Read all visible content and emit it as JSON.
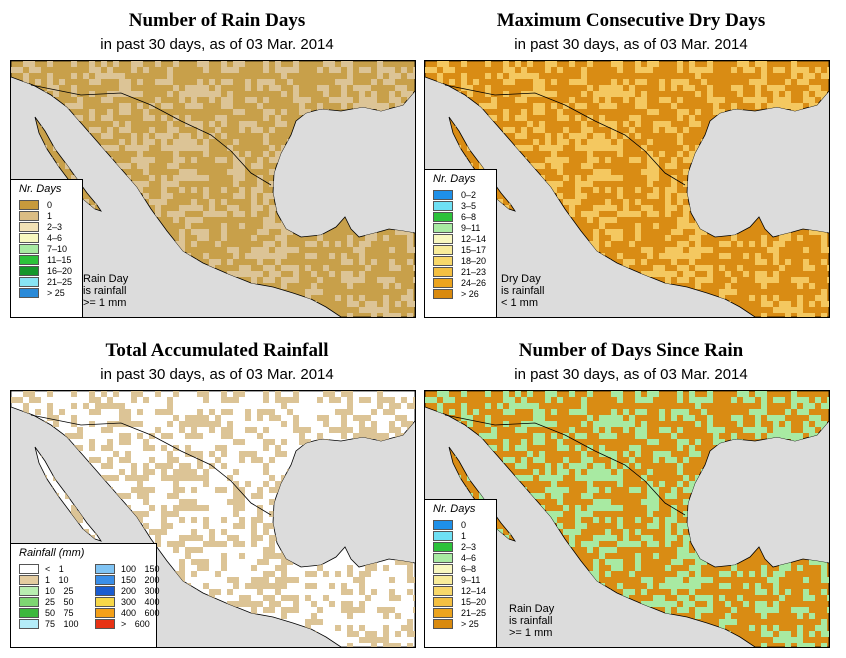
{
  "colors": {
    "ocean": "#dcdcdc",
    "brown": "#c8a04a",
    "tan": "#dcc496",
    "orange": "#d98c14",
    "green": "#33b84c",
    "lightgreen": "#9fe28f",
    "blue": "#39a3e6",
    "white": "#ffffff"
  },
  "panels": {
    "rain_days": {
      "title": "Number of Rain Days",
      "subtitle": "in past 30 days, as of  03 Mar. 2014",
      "legend_title": "Nr. Days",
      "legend": [
        {
          "label": "0",
          "color": "#c79a3c"
        },
        {
          "label": "1",
          "color": "#dbbd84"
        },
        {
          "label": "2–3",
          "color": "#f2e2b6"
        },
        {
          "label": "4–6",
          "color": "#f8f8c0"
        },
        {
          "label": "7–10",
          "color": "#a8eaa2"
        },
        {
          "label": "11–15",
          "color": "#2cc23a"
        },
        {
          "label": "16–20",
          "color": "#14962a"
        },
        {
          "label": "21–25",
          "color": "#88e4f4"
        },
        {
          "label": "> 25",
          "color": "#2a8ad8"
        }
      ],
      "note": [
        "Rain Day",
        "is rainfall",
        ">= 1 mm"
      ]
    },
    "dry_days": {
      "title": "Maximum Consecutive Dry Days",
      "subtitle": "in past 30 days, as of  03 Mar. 2014",
      "legend_title": "Nr. Days",
      "legend": [
        {
          "label": "0–2",
          "color": "#1e90e8"
        },
        {
          "label": "3–5",
          "color": "#6ee0f4"
        },
        {
          "label": "6–8",
          "color": "#2cc23a"
        },
        {
          "label": "9–11",
          "color": "#a8eaa2"
        },
        {
          "label": "12–14",
          "color": "#f8f8c0"
        },
        {
          "label": "15–17",
          "color": "#f8ec9a"
        },
        {
          "label": "18–20",
          "color": "#f8d86a"
        },
        {
          "label": "21–23",
          "color": "#f4c042"
        },
        {
          "label": "24–26",
          "color": "#eca41e"
        },
        {
          "label": "> 26",
          "color": "#d98a0e"
        }
      ],
      "note": [
        "Dry Day",
        "is rainfall",
        "< 1 mm"
      ]
    },
    "total_rainfall": {
      "title": "Total Accumulated Rainfall",
      "subtitle": "in past 30 days, as of  03 Mar. 2014",
      "legend_title": "Rainfall (mm)",
      "legend_left": [
        {
          "label": "< 1",
          "color": "#ffffff"
        },
        {
          "label": "1  10",
          "color": "#e4cca0"
        },
        {
          "label": "10  25",
          "color": "#b8eeb0"
        },
        {
          "label": "25  50",
          "color": "#7ed672"
        },
        {
          "label": "50  75",
          "color": "#3cb83c"
        },
        {
          "label": "75  100",
          "color": "#b4ecf8"
        }
      ],
      "legend_right": [
        {
          "label": "100  150",
          "color": "#80c4f4"
        },
        {
          "label": "150  200",
          "color": "#3a8ee8"
        },
        {
          "label": "200  300",
          "color": "#1a5cd0"
        },
        {
          "label": "300  400",
          "color": "#f8d848"
        },
        {
          "label": "400  600",
          "color": "#f4a018"
        },
        {
          "label": "> 600",
          "color": "#e83214"
        }
      ]
    },
    "days_since_rain": {
      "title": "Number of Days Since Rain",
      "subtitle": "in past 30 days, as of  03 Mar. 2014",
      "legend_title": "Nr. Days",
      "legend": [
        {
          "label": "0",
          "color": "#1e90e8"
        },
        {
          "label": "1",
          "color": "#6ee0f4"
        },
        {
          "label": "2–3",
          "color": "#2cc23a"
        },
        {
          "label": "4–6",
          "color": "#a8eaa2"
        },
        {
          "label": "6–8",
          "color": "#f8f8c0"
        },
        {
          "label": "9–11",
          "color": "#f8ec9a"
        },
        {
          "label": "12–14",
          "color": "#f8d86a"
        },
        {
          "label": "15–20",
          "color": "#f4c042"
        },
        {
          "label": "21–25",
          "color": "#eca41e"
        },
        {
          "label": "> 25",
          "color": "#d98a0e"
        }
      ],
      "note": [
        "Rain Day",
        "is rainfall",
        ">= 1 mm"
      ]
    }
  }
}
